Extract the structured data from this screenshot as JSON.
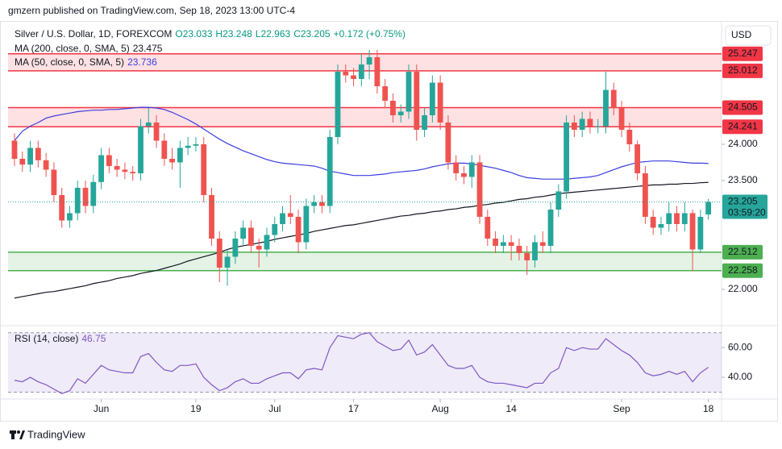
{
  "header": "gmzern published on TradingView.com, Sep 18, 2023 13:00 UTC-4",
  "footer": "TradingView",
  "currency_button": "USD",
  "chart_data": {
    "type": "candlestick",
    "title": "Silver / U.S. Dollar, 1D, FOREXCOM",
    "ohlc_legend": [
      "O23.033",
      "H23.248",
      "L22.963",
      "C23.205",
      "+0.172 (+0.75%)"
    ],
    "categories": [
      null,
      null,
      null,
      null,
      null,
      null,
      null,
      null,
      null,
      null,
      null,
      "Jun",
      null,
      null,
      null,
      null,
      null,
      null,
      null,
      null,
      null,
      null,
      null,
      "19",
      null,
      null,
      null,
      null,
      null,
      null,
      null,
      null,
      null,
      "Jul",
      null,
      null,
      null,
      null,
      null,
      null,
      null,
      null,
      null,
      "17",
      null,
      null,
      null,
      null,
      null,
      null,
      null,
      null,
      null,
      null,
      "Aug",
      null,
      null,
      null,
      null,
      null,
      null,
      null,
      null,
      "14",
      null,
      null,
      null,
      null,
      null,
      null,
      null,
      null,
      null,
      null,
      null,
      null,
      null,
      "Sep",
      null,
      null,
      null,
      null,
      null,
      null,
      null,
      null,
      null,
      null,
      "18"
    ],
    "open": [
      24.05,
      23.8,
      23.72,
      23.95,
      23.78,
      23.65,
      23.3,
      22.95,
      23.05,
      23.4,
      23.15,
      23.48,
      23.85,
      23.7,
      23.65,
      23.62,
      23.6,
      24.25,
      24.3,
      24.05,
      23.8,
      23.75,
      23.95,
      23.98,
      24.0,
      23.3,
      22.7,
      22.3,
      22.45,
      22.7,
      22.85,
      22.6,
      22.55,
      22.75,
      22.9,
      23.05,
      23.0,
      22.65,
      23.15,
      23.2,
      23.15,
      24.1,
      25.0,
      24.95,
      24.9,
      25.1,
      25.2,
      24.8,
      24.6,
      24.4,
      24.45,
      25.0,
      24.2,
      24.4,
      24.85,
      24.3,
      23.75,
      23.6,
      23.55,
      23.75,
      23.0,
      22.7,
      22.6,
      22.65,
      22.6,
      22.5,
      22.4,
      22.65,
      22.6,
      23.1,
      23.35,
      24.3,
      24.2,
      24.35,
      24.25,
      24.25,
      24.75,
      24.5,
      24.2,
      24.0,
      23.6,
      23.0,
      22.85,
      22.9,
      23.05,
      22.9,
      23.05,
      22.55,
      23.033
    ],
    "high": [
      24.15,
      23.9,
      24.05,
      24.05,
      23.88,
      23.75,
      23.4,
      23.15,
      23.5,
      23.5,
      23.58,
      23.95,
      23.95,
      23.8,
      23.75,
      23.7,
      24.35,
      24.5,
      24.4,
      24.15,
      23.95,
      24.05,
      24.1,
      24.1,
      24.1,
      23.4,
      22.8,
      22.55,
      22.8,
      22.95,
      22.95,
      22.7,
      22.85,
      23.0,
      23.15,
      23.3,
      23.1,
      23.25,
      23.3,
      23.3,
      24.2,
      25.1,
      25.1,
      25.05,
      25.25,
      25.3,
      25.3,
      24.9,
      24.7,
      24.55,
      25.1,
      25.1,
      24.5,
      24.95,
      24.95,
      24.4,
      23.85,
      23.7,
      23.85,
      23.85,
      23.1,
      22.8,
      22.75,
      22.75,
      22.7,
      22.6,
      22.75,
      22.8,
      23.2,
      23.45,
      24.4,
      24.4,
      24.45,
      24.45,
      24.35,
      25.0,
      24.85,
      24.6,
      24.3,
      24.05,
      23.7,
      23.1,
      23.0,
      23.2,
      23.15,
      23.2,
      23.1,
      23.1,
      23.248
    ],
    "low": [
      23.7,
      23.62,
      23.62,
      23.68,
      23.55,
      23.2,
      22.85,
      22.85,
      22.95,
      23.05,
      23.05,
      23.38,
      23.6,
      23.55,
      23.52,
      23.5,
      23.5,
      24.15,
      23.95,
      23.7,
      23.65,
      23.4,
      23.85,
      23.9,
      23.2,
      22.6,
      22.1,
      22.05,
      22.35,
      22.6,
      22.5,
      22.3,
      22.45,
      22.65,
      22.8,
      22.9,
      22.5,
      22.55,
      23.05,
      23.05,
      23.05,
      24.0,
      24.85,
      24.8,
      24.8,
      24.9,
      24.7,
      24.5,
      24.3,
      24.3,
      24.35,
      24.05,
      24.1,
      24.3,
      24.2,
      23.65,
      23.5,
      23.45,
      23.4,
      22.9,
      22.6,
      22.5,
      22.5,
      22.4,
      22.4,
      22.2,
      22.3,
      22.5,
      22.5,
      23.0,
      23.25,
      24.1,
      24.1,
      24.15,
      24.15,
      24.15,
      24.4,
      24.1,
      23.9,
      23.5,
      22.9,
      22.75,
      22.75,
      22.8,
      22.8,
      22.8,
      22.25,
      22.5,
      22.963
    ],
    "close": [
      23.8,
      23.72,
      23.95,
      23.78,
      23.65,
      23.3,
      22.95,
      23.05,
      23.4,
      23.15,
      23.48,
      23.85,
      23.7,
      23.65,
      23.62,
      23.6,
      24.25,
      24.3,
      24.05,
      23.8,
      23.75,
      23.95,
      23.98,
      24.0,
      23.3,
      22.7,
      22.3,
      22.45,
      22.7,
      22.85,
      22.6,
      22.55,
      22.75,
      22.9,
      23.05,
      23.0,
      22.65,
      23.15,
      23.2,
      23.15,
      24.1,
      25.0,
      24.95,
      24.9,
      25.1,
      25.2,
      24.8,
      24.6,
      24.4,
      24.45,
      25.0,
      24.2,
      24.4,
      24.85,
      24.3,
      23.75,
      23.6,
      23.55,
      23.75,
      23.0,
      22.7,
      22.6,
      22.65,
      22.6,
      22.5,
      22.4,
      22.65,
      22.6,
      23.1,
      23.35,
      24.3,
      24.2,
      24.35,
      24.25,
      24.25,
      24.75,
      24.5,
      24.2,
      24.0,
      23.6,
      23.0,
      22.85,
      22.9,
      23.05,
      22.9,
      23.05,
      22.55,
      23.0,
      23.205
    ],
    "up_color": "#26a69a",
    "down_color": "#ef5350",
    "ylim": [
      21.544,
      25.6
    ],
    "yticks": [
      {
        "value": 22,
        "label": "22.000"
      },
      {
        "value": 23.5,
        "label": "23.500"
      },
      {
        "value": 24,
        "label": "24.000"
      }
    ],
    "lines": [
      {
        "name": "MA (200, close, 0, SMA, 5)",
        "color": "#131722",
        "values": [
          21.88,
          21.9,
          21.92,
          21.94,
          21.96,
          21.97,
          21.99,
          22.01,
          22.03,
          22.05,
          22.08,
          22.1,
          22.12,
          22.15,
          22.17,
          22.19,
          22.22,
          22.24,
          22.26,
          22.29,
          22.32,
          22.35,
          22.39,
          22.42,
          22.45,
          22.48,
          22.51,
          22.55,
          22.58,
          22.6,
          22.62,
          22.64,
          22.66,
          22.69,
          22.71,
          22.73,
          22.75,
          22.77,
          22.8,
          22.82,
          22.84,
          22.86,
          22.88,
          22.89,
          22.91,
          22.93,
          22.95,
          22.97,
          22.99,
          23.01,
          23.02,
          23.04,
          23.05,
          23.07,
          23.08,
          23.1,
          23.11,
          23.13,
          23.14,
          23.16,
          23.17,
          23.19,
          23.2,
          23.22,
          23.24,
          23.25,
          23.27,
          23.28,
          23.3,
          23.32,
          23.33,
          23.34,
          23.35,
          23.36,
          23.37,
          23.38,
          23.39,
          23.4,
          23.41,
          23.42,
          23.43,
          23.44,
          23.44,
          23.45,
          23.45,
          23.46,
          23.46,
          23.47,
          23.475
        ]
      },
      {
        "name": "MA (50, close, 0, SMA, 5)",
        "color": "#3d3de0",
        "values": [
          24.05,
          24.18,
          24.25,
          24.3,
          24.36,
          24.39,
          24.41,
          24.43,
          24.45,
          24.46,
          24.47,
          24.47,
          24.48,
          24.48,
          24.49,
          24.5,
          24.51,
          24.51,
          24.5,
          24.48,
          24.44,
          24.39,
          24.34,
          24.28,
          24.21,
          24.14,
          24.07,
          24.01,
          23.96,
          23.91,
          23.87,
          23.83,
          23.79,
          23.76,
          23.74,
          23.73,
          23.72,
          23.71,
          23.7,
          23.67,
          23.63,
          23.61,
          23.59,
          23.57,
          23.57,
          23.57,
          23.58,
          23.59,
          23.61,
          23.62,
          23.63,
          23.64,
          23.66,
          23.69,
          23.71,
          23.73,
          23.74,
          23.74,
          23.73,
          23.71,
          23.69,
          23.67,
          23.64,
          23.61,
          23.57,
          23.54,
          23.53,
          23.52,
          23.52,
          23.52,
          23.52,
          23.53,
          23.54,
          23.55,
          23.57,
          23.61,
          23.65,
          23.69,
          23.72,
          23.75,
          23.76,
          23.77,
          23.77,
          23.77,
          23.76,
          23.75,
          23.74,
          23.74,
          23.736
        ]
      }
    ],
    "zones": [
      {
        "low": 25.012,
        "high": 25.247,
        "color": "#f23645"
      },
      {
        "low": 24.241,
        "high": 24.505,
        "color": "#f23645"
      },
      {
        "low": 22.258,
        "high": 22.512,
        "color": "#4caf50"
      }
    ],
    "countdown": "03:59:20",
    "rsi": {
      "name": "RSI (14, close)",
      "color": "#7e57c2",
      "values": [
        38,
        37,
        40,
        37,
        35,
        32,
        29,
        31,
        39,
        36,
        42,
        48,
        45,
        44,
        43,
        43,
        54,
        56,
        50,
        45,
        44,
        48,
        48,
        49,
        40,
        35,
        31,
        33,
        37,
        39,
        36,
        36,
        39,
        41,
        43,
        43,
        39,
        45,
        46,
        45,
        60,
        68,
        67,
        66,
        69,
        70,
        64,
        61,
        58,
        59,
        65,
        55,
        57,
        62,
        55,
        48,
        46,
        46,
        48,
        40,
        37,
        36,
        36,
        35,
        34,
        33,
        36,
        36,
        43,
        46,
        60,
        58,
        60,
        59,
        59,
        66,
        62,
        58,
        55,
        50,
        43,
        41,
        42,
        44,
        42,
        44,
        37,
        43,
        46.75
      ],
      "ylim": [
        27,
        72.6
      ],
      "yticks": [
        {
          "value": 40,
          "label": "40.00"
        },
        {
          "value": 60,
          "label": "60.00"
        }
      ],
      "band": [
        30,
        70
      ]
    }
  }
}
